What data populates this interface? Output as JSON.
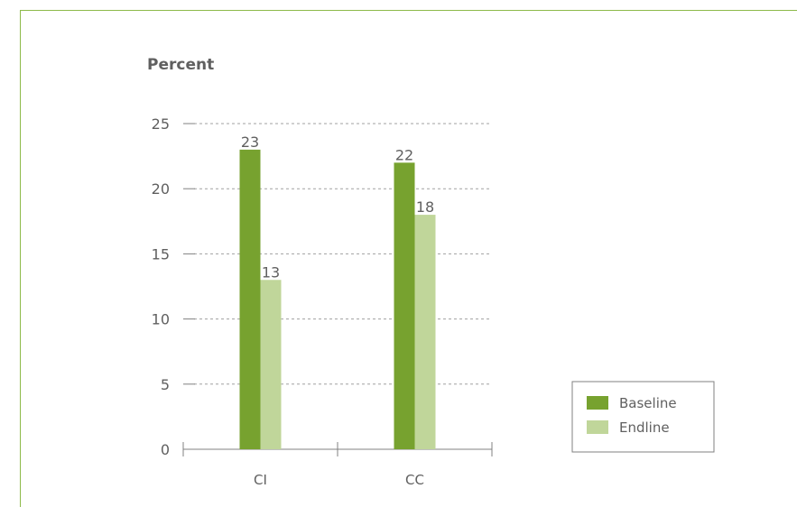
{
  "chart_data": {
    "type": "bar",
    "title": "",
    "ylabel": "Percent",
    "xlabel": "",
    "categories": [
      "CI",
      "CC"
    ],
    "series": [
      {
        "name": "Baseline",
        "values": [
          23,
          22
        ],
        "color": "#77a22f"
      },
      {
        "name": "Endline",
        "values": [
          13,
          18
        ],
        "color": "#c0d69a"
      }
    ],
    "ylim": [
      0,
      25
    ],
    "yticks": [
      "0",
      "5",
      "10",
      "15",
      "20",
      "25"
    ],
    "grid": true,
    "legend_position": "bottom-right"
  },
  "colors": {
    "frame": "#8dba4a",
    "axis": "#808080",
    "grid": "#a0a0a0",
    "text": "#606060"
  }
}
